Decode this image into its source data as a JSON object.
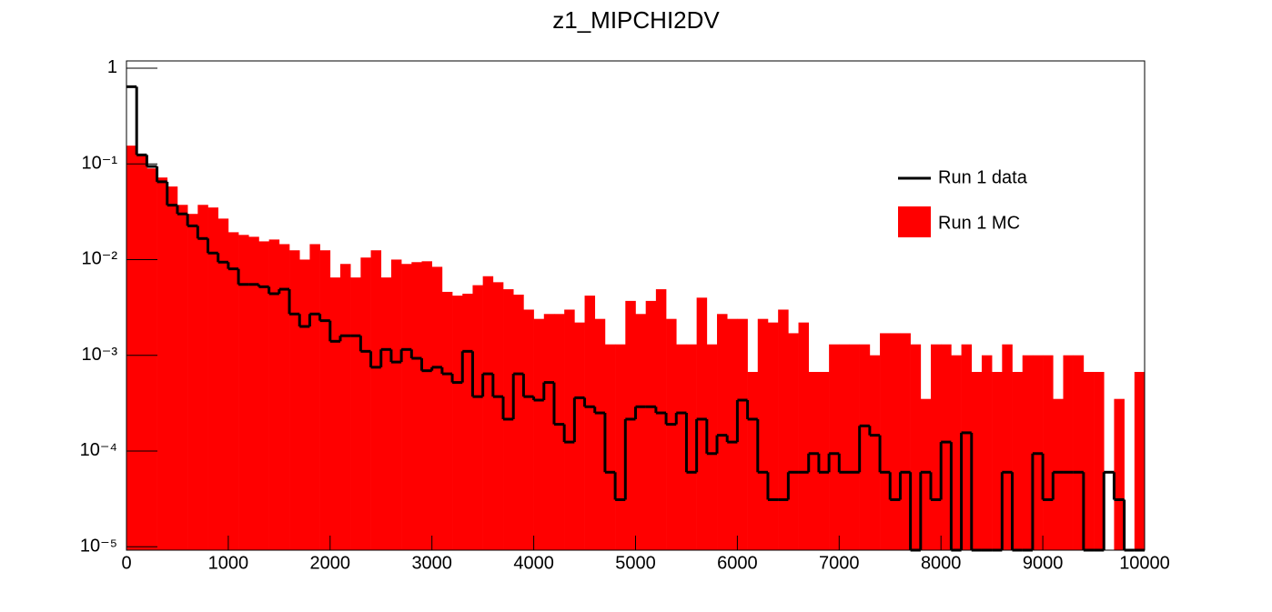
{
  "chart_data": {
    "type": "histogram",
    "title": "z1_MIPCHI2DV",
    "bins": [
      0,
      100,
      200,
      300,
      400,
      500,
      600,
      700,
      800,
      900,
      1000,
      1100,
      1200,
      1300,
      1400,
      1500,
      1600,
      1700,
      1800,
      1900,
      2000,
      2100,
      2200,
      2300,
      2400,
      2500,
      2600,
      2700,
      2800,
      2900,
      3000,
      3100,
      3200,
      3300,
      3400,
      3500,
      3600,
      3700,
      3800,
      3900,
      4000,
      4100,
      4200,
      4300,
      4400,
      4500,
      4600,
      4700,
      4800,
      4900,
      5000,
      5100,
      5200,
      5300,
      5400,
      5500,
      5600,
      5700,
      5800,
      5900,
      6000,
      6100,
      6200,
      6300,
      6400,
      6500,
      6600,
      6700,
      6800,
      6900,
      7000,
      7100,
      7200,
      7300,
      7400,
      7500,
      7600,
      7700,
      7800,
      7900,
      8000,
      8100,
      8200,
      8300,
      8400,
      8500,
      8600,
      8700,
      8800,
      8900,
      9000,
      9100,
      9200,
      9300,
      9400,
      9500,
      9600,
      9700,
      9800,
      9900,
      10000
    ],
    "series": [
      {
        "name": "Run 1 data",
        "color": "#000000",
        "style": "step",
        "values": [
          0.64,
          0.124,
          0.094,
          0.065,
          0.037,
          0.03,
          0.0225,
          0.0166,
          0.0117,
          0.0094,
          0.008,
          0.0055,
          0.0055,
          0.0052,
          0.0044,
          0.0049,
          0.0027,
          0.002,
          0.0027,
          0.0023,
          0.0014,
          0.0016,
          0.0016,
          0.0011,
          0.00075,
          0.00115,
          0.00085,
          0.00115,
          0.00093,
          0.00069,
          0.00075,
          0.00064,
          0.00052,
          0.0011,
          0.00037,
          0.00064,
          0.00037,
          0.000215,
          0.00064,
          0.00037,
          0.00034,
          0.00052,
          0.00019,
          0.000124,
          0.00036,
          0.00029,
          0.00025,
          6e-05,
          3.1e-05,
          0.000215,
          0.00029,
          0.00029,
          0.00025,
          0.00019,
          0.00025,
          6e-05,
          0.000215,
          9.4e-05,
          0.000146,
          0.000124,
          0.00034,
          0.000215,
          6e-05,
          3.1e-05,
          3.1e-05,
          6e-05,
          6e-05,
          9.4e-05,
          6e-05,
          9.4e-05,
          6e-05,
          6e-05,
          0.000183,
          0.000146,
          6e-05,
          3.1e-05,
          6e-05,
          0,
          6e-05,
          3.1e-05,
          0.000124,
          0,
          0.000155,
          0,
          0,
          0,
          6e-05,
          0,
          0,
          9.4e-05,
          3.1e-05,
          6e-05,
          6e-05,
          6e-05,
          0,
          0,
          6e-05,
          3.1e-05,
          0,
          0
        ]
      },
      {
        "name": "Run 1 MC",
        "color": "#ff0000",
        "style": "fill",
        "values": [
          0.155,
          0.124,
          0.0896,
          0.072,
          0.058,
          0.0373,
          0.03,
          0.0373,
          0.035,
          0.0268,
          0.0193,
          0.0181,
          0.0173,
          0.0155,
          0.0162,
          0.0145,
          0.0125,
          0.01,
          0.0145,
          0.0125,
          0.0065,
          0.009,
          0.0065,
          0.0105,
          0.0125,
          0.0065,
          0.01,
          0.009,
          0.0094,
          0.0096,
          0.0084,
          0.0046,
          0.0042,
          0.0044,
          0.0054,
          0.0067,
          0.0058,
          0.0049,
          0.0043,
          0.003,
          0.0024,
          0.0027,
          0.0027,
          0.003,
          0.0022,
          0.0042,
          0.0024,
          0.0013,
          0.0013,
          0.0037,
          0.0027,
          0.0037,
          0.0049,
          0.0024,
          0.0013,
          0.0013,
          0.004,
          0.0013,
          0.0027,
          0.0024,
          0.0024,
          0.00067,
          0.0024,
          0.0022,
          0.003,
          0.0017,
          0.0022,
          0.00067,
          0.00067,
          0.0013,
          0.0013,
          0.0013,
          0.0013,
          0.001,
          0.0017,
          0.0017,
          0.0017,
          0.0013,
          0.00035,
          0.0013,
          0.0013,
          0.001,
          0.0013,
          0.00067,
          0.001,
          0.00067,
          0.0013,
          0.00067,
          0.001,
          0.001,
          0.001,
          0.00035,
          0.001,
          0.001,
          0.00067,
          0.00067,
          0,
          0.00035,
          0,
          0.00067
        ]
      }
    ],
    "xlim": [
      0,
      10000
    ],
    "xticks": [
      0,
      1000,
      2000,
      3000,
      4000,
      5000,
      6000,
      7000,
      8000,
      9000,
      10000
    ],
    "ylim": [
      9.2e-06,
      1.19
    ],
    "yticks": [
      1,
      {
        "value": 0.1,
        "label": "10⁻¹"
      },
      {
        "value": 0.01,
        "label": "10⁻²"
      },
      {
        "value": 0.001,
        "label": "10⁻³"
      },
      {
        "value": 0.0001,
        "label": "10⁻⁴"
      },
      {
        "value": 1e-05,
        "label": "10⁻⁵"
      }
    ],
    "log_y": true,
    "grid": false,
    "legend": "upper right"
  }
}
